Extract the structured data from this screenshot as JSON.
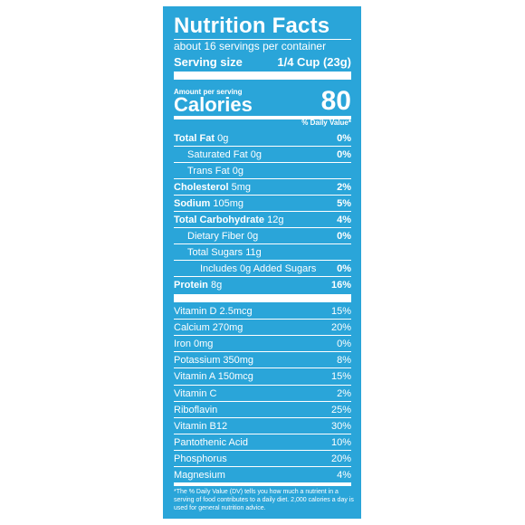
{
  "label": {
    "title": "Nutrition Facts",
    "servings_per_container": "about 16 servings per container",
    "serving_size_label": "Serving size",
    "serving_size_value": "1/4 Cup (23g)",
    "amount_per_serving": "Amount per serving",
    "calories_label": "Calories",
    "calories_value": "80",
    "daily_value_header": "% Daily Value*",
    "nutrients": [
      {
        "name": "Total Fat",
        "amount": "0g",
        "dv": "0%",
        "bold": true,
        "indent": 0
      },
      {
        "name": "Saturated Fat",
        "amount": "0g",
        "dv": "0%",
        "bold": false,
        "indent": 1
      },
      {
        "name": "Trans Fat",
        "amount": "0g",
        "dv": "",
        "bold": false,
        "indent": 1,
        "italic_name": true
      },
      {
        "name": "Cholesterol",
        "amount": "5mg",
        "dv": "2%",
        "bold": true,
        "indent": 0
      },
      {
        "name": "Sodium",
        "amount": "105mg",
        "dv": "5%",
        "bold": true,
        "indent": 0
      },
      {
        "name": "Total Carbohydrate",
        "amount": "12g",
        "dv": "4%",
        "bold": true,
        "indent": 0
      },
      {
        "name": "Dietary Fiber",
        "amount": "0g",
        "dv": "0%",
        "bold": false,
        "indent": 1
      },
      {
        "name": "Total Sugars",
        "amount": "11g",
        "dv": "",
        "bold": false,
        "indent": 1
      },
      {
        "name": "Includes 0g Added Sugars",
        "amount": "",
        "dv": "0%",
        "bold": false,
        "indent": 2
      },
      {
        "name": "Protein",
        "amount": "8g",
        "dv": "16%",
        "bold": true,
        "indent": 0
      }
    ],
    "vitamins": [
      {
        "text": "Vitamin D 2.5mcg",
        "dv": "15%"
      },
      {
        "text": "Calcium 270mg",
        "dv": "20%"
      },
      {
        "text": "Iron 0mg",
        "dv": "0%"
      },
      {
        "text": "Potassium 350mg",
        "dv": "8%"
      },
      {
        "text": "Vitamin A 150mcg",
        "dv": "15%"
      },
      {
        "text": "Vitamin C",
        "dv": "2%"
      },
      {
        "text": "Riboflavin",
        "dv": "25%"
      },
      {
        "text": "Vitamin B12",
        "dv": "30%"
      },
      {
        "text": "Pantothenic Acid",
        "dv": "10%"
      },
      {
        "text": "Phosphorus",
        "dv": "20%"
      },
      {
        "text": "Magnesium",
        "dv": "4%"
      }
    ],
    "footnote": "*The % Daily Value (DV) tells you how much a nutrient in a serving of food contributes to a daily diet. 2,000 calories a day is used for general nutrition advice.",
    "colors": {
      "background": "#2aa5d9",
      "text": "#ffffff"
    }
  }
}
